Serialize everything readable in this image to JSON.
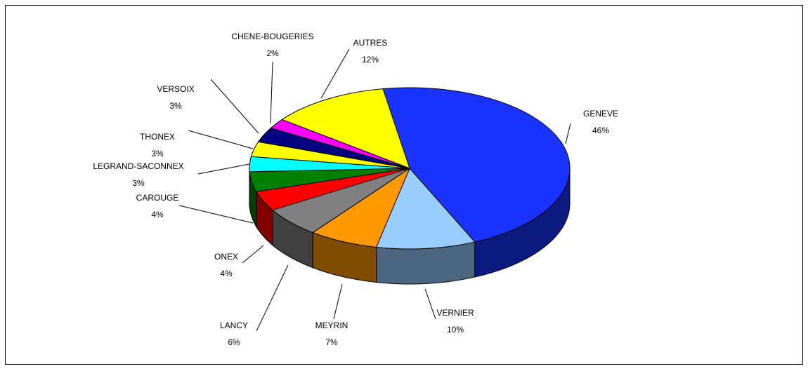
{
  "chart_data": {
    "type": "pie3d",
    "categories": [
      "GENEVE",
      "VERNIER",
      "MEYRIN",
      "LANCY",
      "ONEX",
      "CAROUGE",
      "LEGRAND-SACONNEX",
      "THONEX",
      "VERSOIX",
      "CHENE-BOUGERIES",
      "AUTRES"
    ],
    "values": [
      46,
      10,
      7,
      6,
      4,
      4,
      3,
      3,
      3,
      2,
      12
    ],
    "value_labels": [
      "46%",
      "10%",
      "7%",
      "6%",
      "4%",
      "4%",
      "3%",
      "3%",
      "3%",
      "2%",
      "12%"
    ],
    "colors": [
      "#1a33ff",
      "#99ccff",
      "#ff9900",
      "#808080",
      "#ff0000",
      "#008000",
      "#00ffff",
      "#ffff00",
      "#000080",
      "#ff00ff",
      "#ffff00"
    ]
  }
}
